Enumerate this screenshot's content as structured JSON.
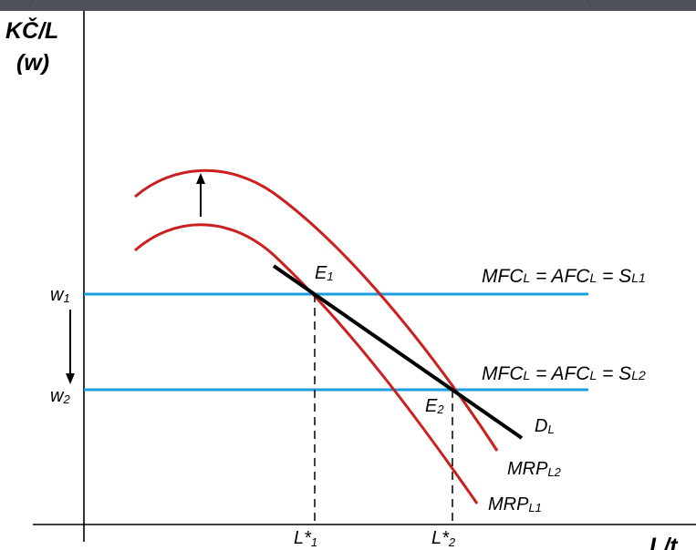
{
  "axes": {
    "y_label_line1": "KČ/L",
    "y_label_line2": "(w)",
    "x_label": "L/t"
  },
  "wage_levels": {
    "w1": {
      "letter": "w",
      "sub": "1"
    },
    "w2": {
      "letter": "w",
      "sub": "2"
    }
  },
  "supply_lines": {
    "s1": {
      "a": "MFC",
      "b": "L",
      "c": " = AFC",
      "d": "L",
      "e": " = S",
      "f": "L1"
    },
    "s2": {
      "a": "MFC",
      "b": "L",
      "c": " = AFC",
      "d": "L",
      "e": " = S",
      "f": "L2"
    }
  },
  "curves": {
    "mrp1": {
      "base": "MRP",
      "sub": "L1"
    },
    "mrp2": {
      "base": "MRP",
      "sub": "L2"
    },
    "demand": {
      "base": "D",
      "sub": "L"
    }
  },
  "equilibria": {
    "e1": {
      "base": "E",
      "sub": "1"
    },
    "e2": {
      "base": "E",
      "sub": "2"
    }
  },
  "quantities": {
    "l1": {
      "base": "L*",
      "sub": "1"
    },
    "l2": {
      "base": "L*",
      "sub": "2"
    }
  },
  "colors": {
    "mrp_curve": "#cc1f1f",
    "supply_line": "#1a9ee0",
    "demand_line": "#000000",
    "background_frame": "#4d5157"
  }
}
